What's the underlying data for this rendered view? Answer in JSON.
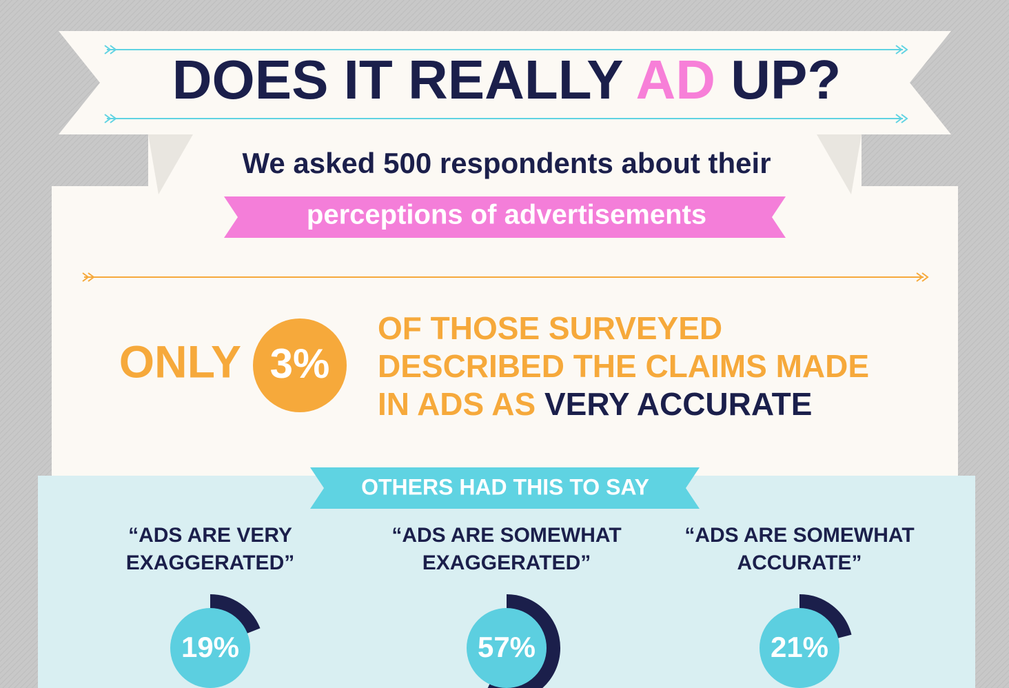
{
  "title": {
    "pre": "DOES IT REALLY",
    "highlight": "AD",
    "post": "UP?"
  },
  "subtitle": {
    "line1": "We asked 500 respondents about their",
    "line2": "perceptions of advertisements"
  },
  "callout": {
    "lead": "ONLY",
    "figure": "3%",
    "line1": "OF THOSE SURVEYED",
    "line2": "DESCRIBED THE CLAIMS MADE",
    "line3": "IN ADS AS",
    "emphasis": "VERY ACCURATE"
  },
  "section_label": "OTHERS HAD THIS TO SAY",
  "chart_data": {
    "type": "donut",
    "categories": [
      [
        "“ADS ARE VERY",
        "EXAGGERATED”"
      ],
      [
        "“ADS ARE SOMEWHAT",
        "EXAGGERATED”"
      ],
      [
        "“ADS ARE SOMEWHAT",
        "ACCURATE”"
      ]
    ],
    "values": [
      19,
      57,
      21
    ],
    "value_labels": [
      "19%",
      "57%",
      "21%"
    ],
    "color": "#1b1f4b",
    "inner_color": "#5ccfe0"
  }
}
